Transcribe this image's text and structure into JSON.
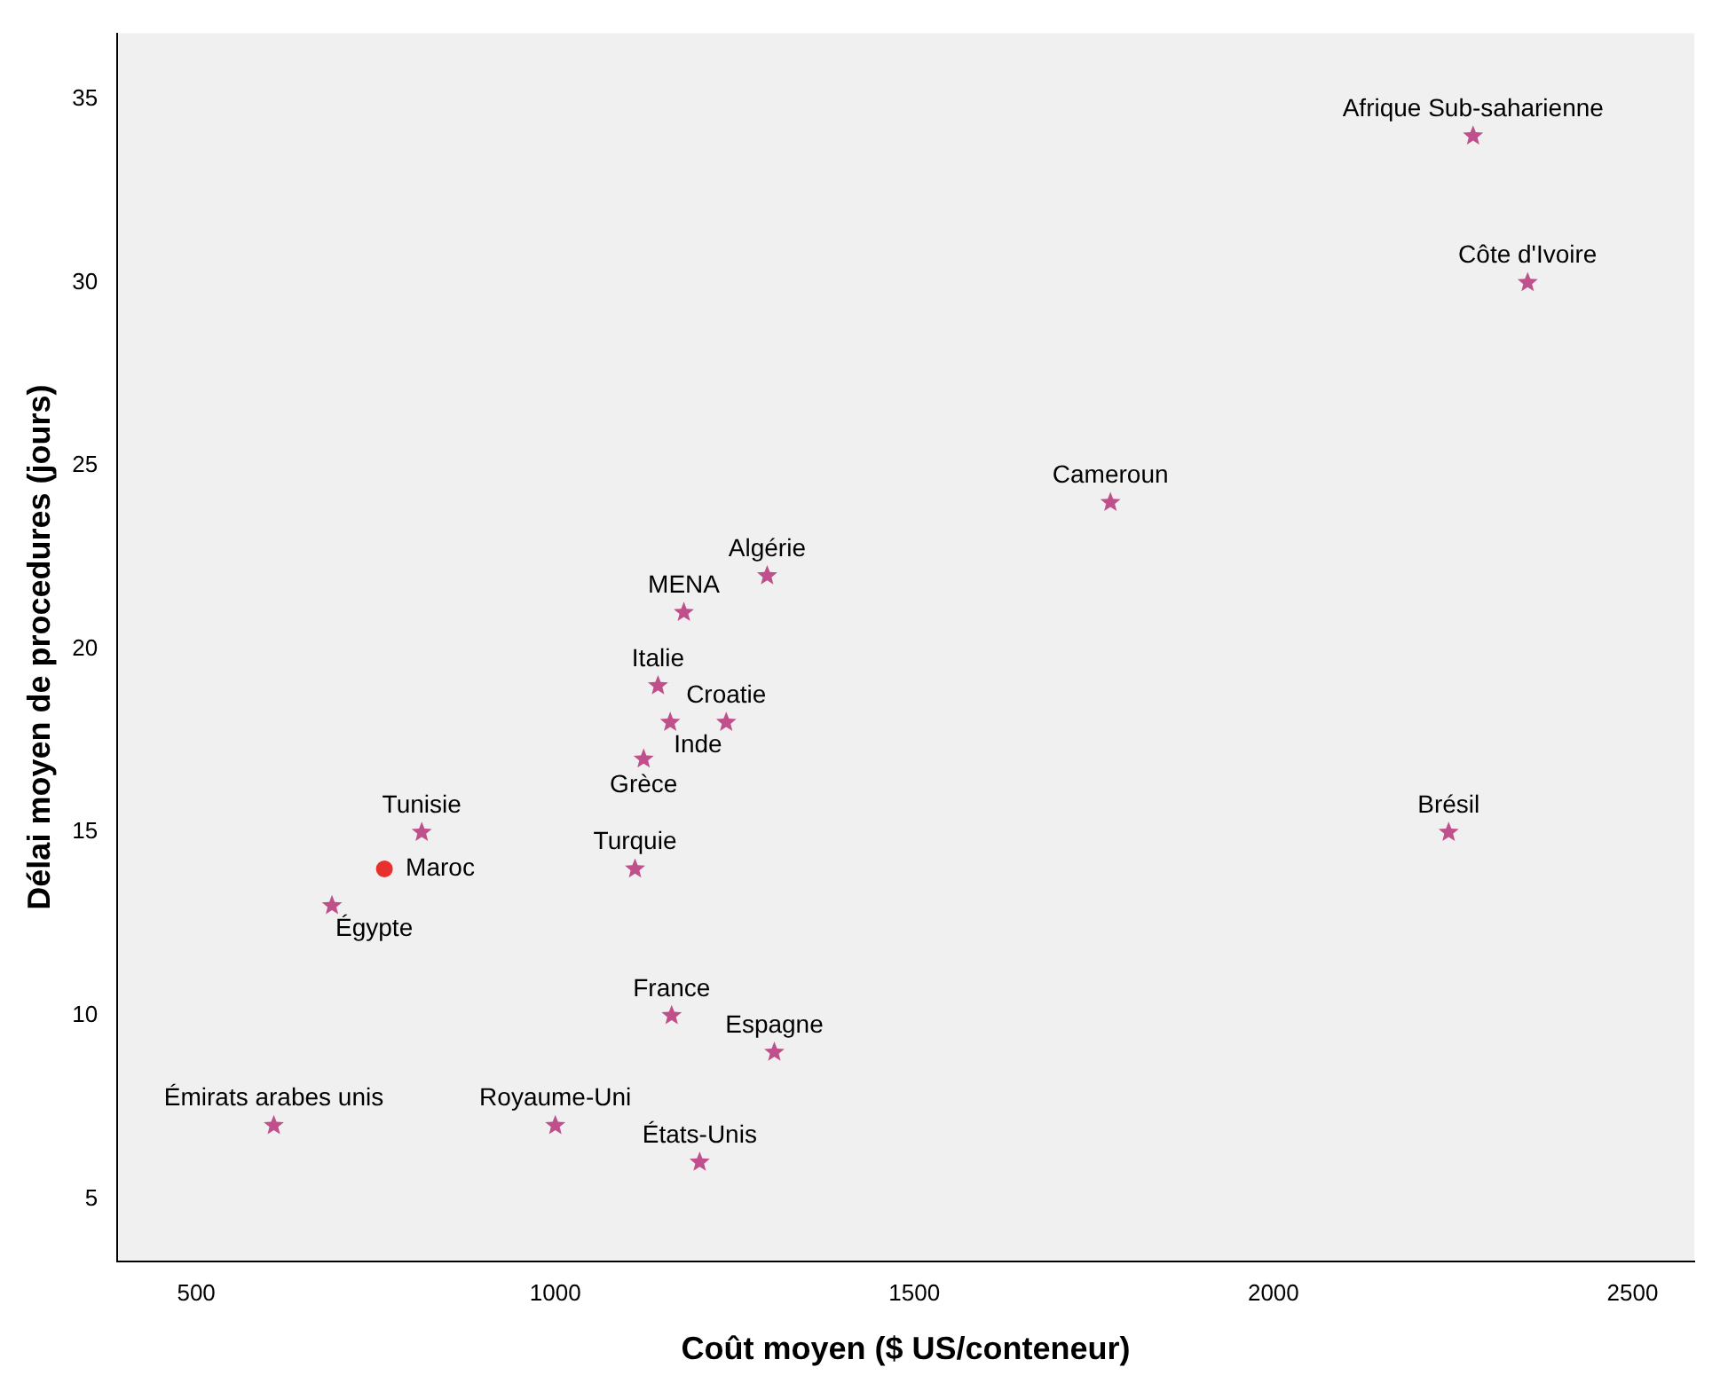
{
  "chart_data": {
    "type": "scatter",
    "xlabel": "Coût moyen ($ US/conteneur)",
    "ylabel": "Délai moyen de procedures (jours)",
    "xlim": [
      390,
      2586
    ],
    "ylim": [
      3.3,
      36.8
    ],
    "xticks": [
      500,
      1000,
      1500,
      2000,
      2500
    ],
    "yticks": [
      5,
      10,
      15,
      20,
      25,
      30,
      35
    ],
    "grid": false,
    "legend": false,
    "marker": "star",
    "series": [
      {
        "color": "#c0508c",
        "x": [
          2278,
          2354,
          1773,
          1295,
          1179,
          1143,
          1238,
          1160,
          1123,
          814,
          1111,
          689,
          2244,
          1162,
          1305,
          608,
          1000,
          1201
        ],
        "values": [
          34,
          30,
          24,
          22,
          21,
          19,
          18,
          18,
          17,
          15,
          14,
          13,
          15,
          10,
          9,
          7,
          7,
          6
        ]
      },
      {
        "color": "#e8302e",
        "marker": "circle",
        "x": [
          762
        ],
        "values": [
          14
        ]
      }
    ],
    "annotations": [
      {
        "text": "Afrique Sub-saharienne",
        "x": 2278,
        "y": 34
      },
      {
        "text": "Côte d'Ivoire",
        "x": 2354,
        "y": 30
      },
      {
        "text": "Cameroun",
        "x": 1773,
        "y": 24
      },
      {
        "text": "Algérie",
        "x": 1295,
        "y": 22
      },
      {
        "text": "MENA",
        "x": 1179,
        "y": 21
      },
      {
        "text": "Italie",
        "x": 1143,
        "y": 19
      },
      {
        "text": "Croatie",
        "x": 1238,
        "y": 18
      },
      {
        "text": "Inde",
        "x": 1160,
        "y": 18
      },
      {
        "text": "Grèce",
        "x": 1123,
        "y": 17
      },
      {
        "text": "Tunisie",
        "x": 814,
        "y": 15
      },
      {
        "text": "Turquie",
        "x": 1111,
        "y": 14
      },
      {
        "text": "Égypte",
        "x": 689,
        "y": 13
      },
      {
        "text": "Brésil",
        "x": 2244,
        "y": 15
      },
      {
        "text": "France",
        "x": 1162,
        "y": 10
      },
      {
        "text": "Espagne",
        "x": 1305,
        "y": 9
      },
      {
        "text": "Émirats arabes unis",
        "x": 608,
        "y": 7
      },
      {
        "text": "Royaume-Uni",
        "x": 1000,
        "y": 7
      },
      {
        "text": "États-Unis",
        "x": 1201,
        "y": 6
      },
      {
        "text": "Maroc",
        "x": 762,
        "y": 14
      }
    ]
  }
}
